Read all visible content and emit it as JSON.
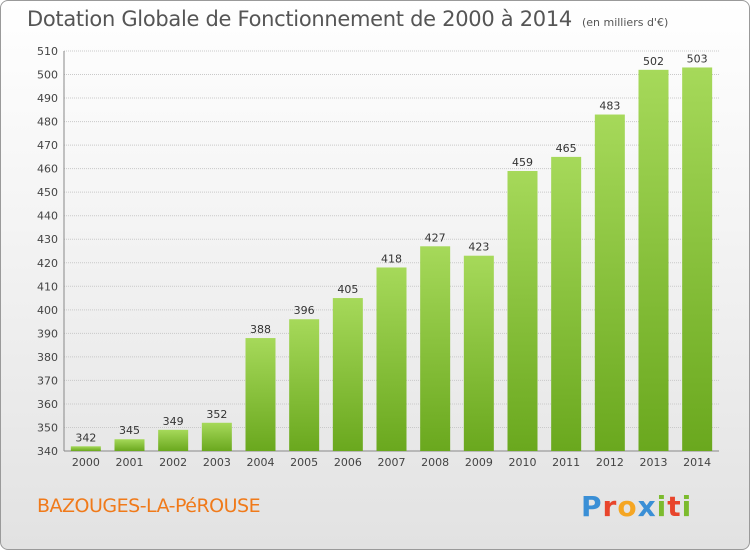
{
  "header": {
    "title": "Dotation Globale de Fonctionnement de 2000 à 2014",
    "subtitle": "(en milliers d'€)"
  },
  "footer": {
    "commune": "BAZOUGES-LA-PéROUSE",
    "logo_letters": [
      {
        "char": "P",
        "color": "#3a8fd6"
      },
      {
        "char": "r",
        "color": "#e8452c"
      },
      {
        "char": "o",
        "color": "#f5a623"
      },
      {
        "char": "x",
        "color": "#3a8fd6"
      },
      {
        "char": "i",
        "color": "#7cbb2e"
      },
      {
        "char": "t",
        "color": "#e8452c"
      },
      {
        "char": "i",
        "color": "#7cbb2e"
      }
    ]
  },
  "colors": {
    "bar_light": "#a6d95a",
    "bar_dark": "#6aa81e",
    "grid": "#c9c9c9"
  },
  "chart_data": {
    "type": "bar",
    "categories": [
      "2000",
      "2001",
      "2002",
      "2003",
      "2004",
      "2005",
      "2006",
      "2007",
      "2008",
      "2009",
      "2010",
      "2011",
      "2012",
      "2013",
      "2014"
    ],
    "values": [
      342,
      345,
      349,
      352,
      388,
      396,
      405,
      418,
      427,
      423,
      459,
      465,
      483,
      502,
      503
    ],
    "title": "Dotation Globale de Fonctionnement de 2000 à 2014",
    "subtitle": "(en milliers d'€)",
    "xlabel": "",
    "ylabel": "",
    "ylim": [
      340,
      510
    ],
    "yticks": [
      340,
      350,
      360,
      370,
      380,
      390,
      400,
      410,
      420,
      430,
      440,
      450,
      460,
      470,
      480,
      490,
      500,
      510
    ],
    "grid": true,
    "legend": "none"
  }
}
